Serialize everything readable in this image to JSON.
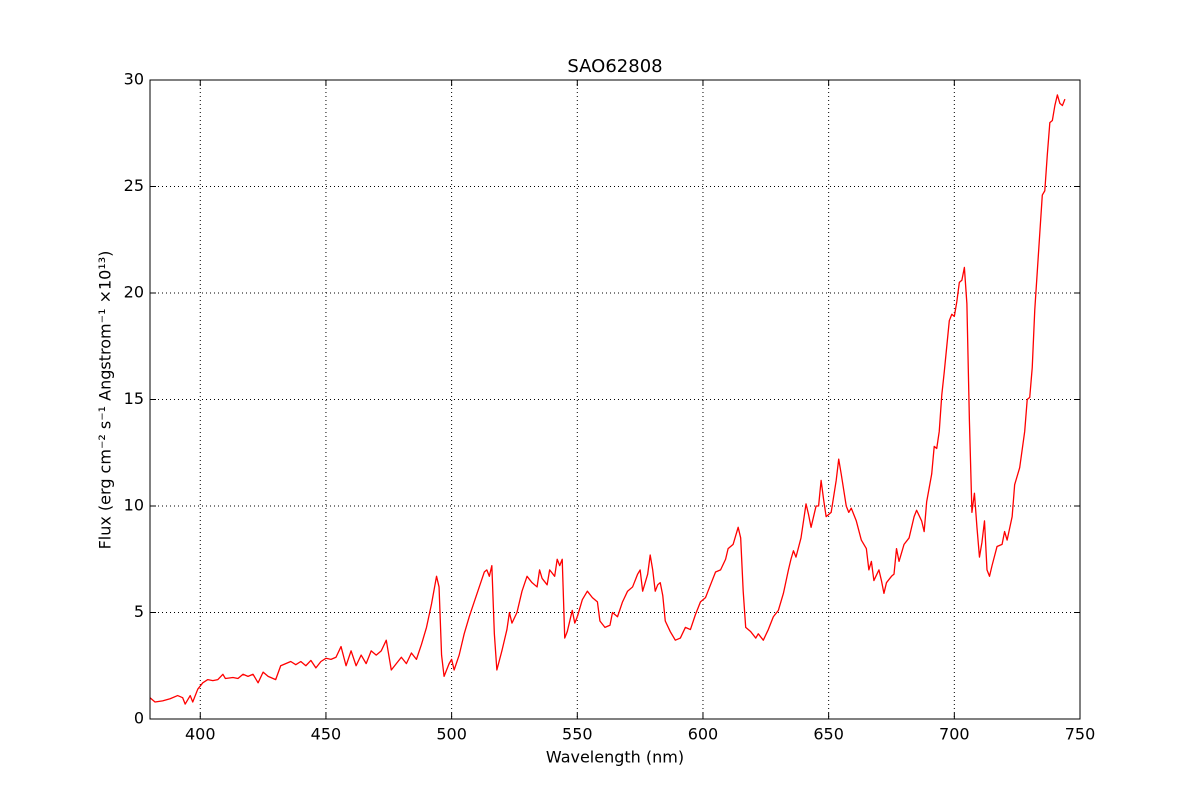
{
  "chart_data": {
    "type": "line",
    "title": "SAO62808",
    "x_label": "Wavelength (nm)",
    "y_label": "Flux  (erg cm⁻²  s⁻¹  Angstrom⁻¹  ×10¹³)",
    "color": "#ff0000",
    "grid": true,
    "xlim": [
      380,
      750
    ],
    "xticks": [
      400,
      450,
      500,
      550,
      600,
      650,
      700,
      750
    ],
    "ylim": [
      0,
      30
    ],
    "yticks": [
      0,
      5,
      10,
      15,
      20,
      25,
      30
    ],
    "x": [
      380,
      382,
      385,
      388,
      391,
      393,
      394,
      396,
      397,
      399,
      401,
      403,
      405,
      407,
      409,
      410,
      413,
      415,
      417,
      419,
      421,
      423,
      425,
      427,
      430,
      432,
      434,
      436,
      438,
      440,
      442,
      444,
      446,
      448,
      450,
      452,
      454,
      456,
      458,
      460,
      462,
      464,
      466,
      468,
      470,
      472,
      474,
      476,
      478,
      480,
      482,
      484,
      486,
      488,
      490,
      492,
      494,
      495,
      496,
      497,
      499,
      500,
      501,
      503,
      505,
      507,
      509,
      511,
      513,
      514,
      515,
      516,
      517,
      518,
      520,
      522,
      523,
      524,
      526,
      528,
      530,
      532,
      534,
      535,
      536,
      538,
      539,
      541,
      542,
      543,
      544,
      545,
      546,
      548,
      549,
      550,
      552,
      554,
      556,
      558,
      559,
      561,
      563,
      564,
      566,
      568,
      570,
      572,
      574,
      575,
      576,
      578,
      579,
      580,
      581,
      582,
      583,
      584,
      585,
      587,
      589,
      591,
      593,
      595,
      597,
      599,
      601,
      603,
      605,
      607,
      609,
      610,
      612,
      614,
      615,
      616,
      617,
      619,
      621,
      622,
      624,
      626,
      628,
      630,
      632,
      634,
      635,
      636,
      637,
      639,
      640,
      641,
      642,
      643,
      645,
      646,
      647,
      648,
      649,
      651,
      653,
      654,
      655,
      657,
      658,
      659,
      661,
      663,
      665,
      666,
      667,
      668,
      670,
      671,
      672,
      673,
      675,
      676,
      677,
      678,
      680,
      682,
      684,
      685,
      687,
      688,
      689,
      691,
      692,
      693,
      694,
      695,
      696,
      697,
      698,
      699,
      700,
      701,
      702,
      703,
      704,
      705,
      706,
      707,
      708,
      709,
      710,
      711,
      712,
      713,
      714,
      715,
      717,
      719,
      720,
      721,
      723,
      724,
      726,
      728,
      729,
      730,
      731,
      732,
      733,
      734,
      735,
      736,
      737,
      738,
      739,
      740,
      741,
      742,
      743,
      744
    ],
    "values": [
      1.0,
      0.8,
      0.85,
      0.95,
      1.1,
      1.0,
      0.7,
      1.1,
      0.8,
      1.4,
      1.7,
      1.85,
      1.8,
      1.85,
      2.1,
      1.9,
      1.95,
      1.9,
      2.1,
      2.0,
      2.1,
      1.7,
      2.2,
      2.0,
      1.85,
      2.5,
      2.6,
      2.7,
      2.55,
      2.7,
      2.5,
      2.75,
      2.4,
      2.7,
      2.85,
      2.8,
      2.9,
      3.4,
      2.5,
      3.2,
      2.5,
      3.0,
      2.6,
      3.2,
      3.0,
      3.2,
      3.7,
      2.3,
      2.6,
      2.9,
      2.6,
      3.1,
      2.8,
      3.5,
      4.3,
      5.4,
      6.7,
      6.2,
      3.0,
      2.0,
      2.6,
      2.8,
      2.3,
      3.0,
      4.0,
      4.8,
      5.5,
      6.2,
      6.9,
      7.0,
      6.7,
      7.2,
      4.0,
      2.3,
      3.2,
      4.2,
      5.0,
      4.5,
      5.0,
      6.0,
      6.7,
      6.4,
      6.2,
      7.0,
      6.6,
      6.3,
      7.0,
      6.7,
      7.5,
      7.2,
      7.5,
      3.8,
      4.1,
      5.1,
      4.5,
      4.8,
      5.6,
      6.0,
      5.7,
      5.5,
      4.6,
      4.3,
      4.4,
      5.0,
      4.8,
      5.5,
      6.0,
      6.2,
      6.8,
      7.0,
      6.0,
      6.8,
      7.7,
      7.0,
      6.0,
      6.3,
      6.4,
      5.8,
      4.6,
      4.1,
      3.7,
      3.8,
      4.3,
      4.2,
      4.9,
      5.5,
      5.7,
      6.3,
      6.9,
      7.0,
      7.5,
      8.0,
      8.2,
      9.0,
      8.5,
      6.0,
      4.3,
      4.1,
      3.8,
      4.0,
      3.7,
      4.2,
      4.8,
      5.1,
      5.9,
      7.0,
      7.5,
      7.9,
      7.6,
      8.5,
      9.3,
      10.1,
      9.6,
      9.0,
      10.0,
      10.0,
      11.2,
      10.3,
      9.5,
      9.7,
      11.2,
      12.2,
      11.5,
      10.0,
      9.7,
      9.9,
      9.3,
      8.4,
      8.0,
      7.0,
      7.4,
      6.5,
      7.0,
      6.5,
      5.9,
      6.4,
      6.7,
      6.8,
      8.0,
      7.4,
      8.2,
      8.5,
      9.5,
      9.8,
      9.3,
      8.8,
      10.2,
      11.5,
      12.8,
      12.7,
      13.5,
      15.2,
      16.3,
      17.5,
      18.7,
      19.0,
      18.9,
      19.6,
      20.5,
      20.6,
      21.2,
      19.5,
      14.0,
      9.7,
      10.6,
      9.0,
      7.6,
      8.3,
      9.3,
      7.0,
      6.7,
      7.2,
      8.1,
      8.2,
      8.8,
      8.4,
      9.5,
      11.0,
      11.8,
      13.5,
      15.0,
      15.1,
      16.5,
      19.2,
      21.0,
      22.8,
      24.6,
      24.8,
      26.5,
      28.0,
      28.1,
      28.8,
      29.3,
      28.9,
      28.8,
      29.1
    ]
  }
}
